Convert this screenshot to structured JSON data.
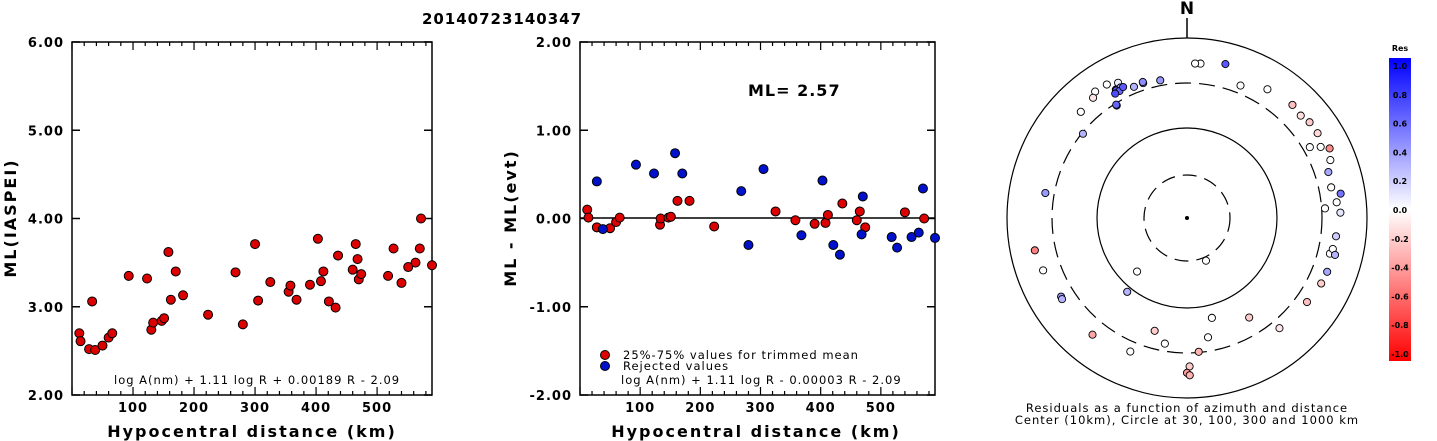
{
  "title": "20140723140347",
  "chart_data": [
    {
      "type": "scatter",
      "id": "ml_vs_distance",
      "xlabel": "Hypocentral distance (km)",
      "ylabel": "ML(IASPEI)",
      "xlim": [
        0,
        590
      ],
      "ylim": [
        2.0,
        6.0
      ],
      "xticks": [
        100,
        200,
        300,
        400,
        500
      ],
      "yticks": [
        "2.00",
        "3.00",
        "4.00",
        "5.00",
        "6.00"
      ],
      "formula": "log A(nm) + 1.11 log R + 0.00189 R - 2.09",
      "marker_color": "#dd0000",
      "points": [
        [
          12,
          2.7
        ],
        [
          14,
          2.61
        ],
        [
          28,
          2.52
        ],
        [
          33,
          3.06
        ],
        [
          38,
          2.51
        ],
        [
          50,
          2.56
        ],
        [
          60,
          2.65
        ],
        [
          66,
          2.7
        ],
        [
          93,
          3.35
        ],
        [
          123,
          3.32
        ],
        [
          130,
          2.74
        ],
        [
          133,
          2.82
        ],
        [
          147,
          2.84
        ],
        [
          151,
          2.87
        ],
        [
          158,
          3.62
        ],
        [
          162,
          3.08
        ],
        [
          170,
          3.4
        ],
        [
          182,
          3.13
        ],
        [
          223,
          2.91
        ],
        [
          268,
          3.39
        ],
        [
          280,
          2.8
        ],
        [
          300,
          3.71
        ],
        [
          305,
          3.07
        ],
        [
          325,
          3.28
        ],
        [
          355,
          3.17
        ],
        [
          358,
          3.24
        ],
        [
          368,
          3.08
        ],
        [
          390,
          3.25
        ],
        [
          403,
          3.77
        ],
        [
          408,
          3.29
        ],
        [
          412,
          3.4
        ],
        [
          421,
          3.06
        ],
        [
          432,
          2.99
        ],
        [
          436,
          3.58
        ],
        [
          460,
          3.42
        ],
        [
          465,
          3.71
        ],
        [
          468,
          3.54
        ],
        [
          470,
          3.31
        ],
        [
          474,
          3.37
        ],
        [
          518,
          3.35
        ],
        [
          527,
          3.66
        ],
        [
          540,
          3.27
        ],
        [
          551,
          3.45
        ],
        [
          563,
          3.5
        ],
        [
          570,
          3.66
        ],
        [
          572,
          4.0
        ],
        [
          590,
          3.47
        ]
      ]
    },
    {
      "type": "scatter",
      "id": "ml_residuals",
      "xlabel": "Hypocentral distance (km)",
      "ylabel": "ML - ML(evt)",
      "xlim": [
        0,
        590
      ],
      "ylim": [
        -2.0,
        2.0
      ],
      "xticks": [
        100,
        200,
        300,
        400,
        500
      ],
      "yticks": [
        "-2.00",
        "-1.00",
        "0.00",
        "1.00",
        "2.00"
      ],
      "annotation": "ML=  2.57",
      "formula": "log A(nm) + 1.11 log R - 0.00003 R - 2.09",
      "legend": [
        {
          "label": "25%-75% values for trimmed mean",
          "color": "#dd0000"
        },
        {
          "label": "Rejected values",
          "color": "#0011cc"
        }
      ],
      "trimmed": [
        [
          12,
          0.1
        ],
        [
          14,
          0.01
        ],
        [
          28,
          -0.1
        ],
        [
          50,
          -0.11
        ],
        [
          60,
          -0.04
        ],
        [
          66,
          0.01
        ],
        [
          133,
          -0.07
        ],
        [
          134,
          0.0
        ],
        [
          147,
          0.01
        ],
        [
          151,
          0.02
        ],
        [
          162,
          0.2
        ],
        [
          182,
          0.2
        ],
        [
          223,
          -0.09
        ],
        [
          325,
          0.08
        ],
        [
          358,
          -0.02
        ],
        [
          390,
          -0.06
        ],
        [
          408,
          -0.05
        ],
        [
          412,
          0.04
        ],
        [
          436,
          0.17
        ],
        [
          460,
          -0.02
        ],
        [
          465,
          0.08
        ],
        [
          474,
          -0.1
        ],
        [
          540,
          0.07
        ],
        [
          572,
          0.0
        ]
      ],
      "rejected": [
        [
          28,
          0.42
        ],
        [
          38,
          -0.12
        ],
        [
          93,
          0.61
        ],
        [
          123,
          0.51
        ],
        [
          158,
          0.74
        ],
        [
          170,
          0.51
        ],
        [
          268,
          0.31
        ],
        [
          280,
          -0.3
        ],
        [
          305,
          0.56
        ],
        [
          368,
          -0.19
        ],
        [
          403,
          0.43
        ],
        [
          421,
          -0.3
        ],
        [
          432,
          -0.41
        ],
        [
          468,
          -0.18
        ],
        [
          470,
          0.25
        ],
        [
          518,
          -0.21
        ],
        [
          551,
          -0.21
        ],
        [
          563,
          -0.16
        ],
        [
          570,
          0.34
        ],
        [
          590,
          -0.22
        ],
        [
          527,
          -0.33
        ]
      ]
    },
    {
      "type": "polar_scatter",
      "id": "residual_azimuth",
      "north_label": "N",
      "caption_line1": "Residuals as a function of azimuth and distance",
      "caption_line2": "Center (10km), Circle at 30, 100, 300 and 1000 km",
      "rings_km": [
        30,
        100,
        300,
        1000
      ],
      "colorbar": {
        "title": "Res",
        "ticks": [
          "1.0",
          "0.8",
          "0.6",
          "0.4",
          "0.2",
          "0.0",
          "-0.2",
          "-0.4",
          "-0.6",
          "-0.8",
          "-1.0"
        ]
      },
      "stations": [
        {
          "az": 14,
          "dist": 565,
          "res": 0.65
        },
        {
          "az": 5,
          "dist": 512,
          "res": 0.0
        },
        {
          "az": 3,
          "dist": 508,
          "res": 0.0
        },
        {
          "az": -27,
          "dist": 470,
          "res": 0.05
        },
        {
          "az": -36,
          "dist": 530,
          "res": 0.0
        },
        {
          "az": -31,
          "dist": 522,
          "res": 0.0
        },
        {
          "az": -29,
          "dist": 412,
          "res": 0.2
        },
        {
          "az": -27,
          "dist": 408,
          "res": 0.3
        },
        {
          "az": -29,
          "dist": 402,
          "res": 0.65
        },
        {
          "az": -18,
          "dist": 360,
          "res": 0.2
        },
        {
          "az": -11,
          "dist": 345,
          "res": 0.4
        },
        {
          "az": -32,
          "dist": 283,
          "res": 0.7
        },
        {
          "az": -51,
          "dist": 292,
          "res": 0.3
        },
        {
          "az": 22,
          "dist": 370,
          "res": 0.0
        },
        {
          "az": 32,
          "dist": 470,
          "res": 0.0
        },
        {
          "az": 43,
          "dist": 507,
          "res": -0.25
        },
        {
          "az": 48,
          "dist": 486,
          "res": -0.12
        },
        {
          "az": 52,
          "dist": 520,
          "res": -0.2
        },
        {
          "az": 57,
          "dist": 522,
          "res": -0.15
        },
        {
          "az": 64,
          "dist": 565,
          "res": -0.45
        },
        {
          "az": 62,
          "dist": 465,
          "res": 0.0
        },
        {
          "az": 72,
          "dist": 432,
          "res": 0.35
        },
        {
          "az": 68,
          "dist": 507,
          "res": 0.0
        },
        {
          "az": 78,
          "dist": 418,
          "res": 0.0
        },
        {
          "az": 81,
          "dist": 520,
          "res": 0.55
        },
        {
          "az": 84,
          "dist": 454,
          "res": 0.0
        },
        {
          "az": 88,
          "dist": 492,
          "res": 0.1
        },
        {
          "az": 86,
          "dist": 328,
          "res": 0.0
        },
        {
          "az": 97,
          "dist": 450,
          "res": 0.2
        },
        {
          "az": 104,
          "dist": 417,
          "res": 0.0
        },
        {
          "az": 102,
          "dist": 437,
          "res": 0.0
        },
        {
          "az": 104,
          "dist": 480,
          "res": 0.3
        },
        {
          "az": 111,
          "dist": 450,
          "res": 0.35
        },
        {
          "az": 116,
          "dist": 440,
          "res": -0.2
        },
        {
          "az": 125,
          "dist": 408,
          "res": -0.25
        },
        {
          "az": 140,
          "dist": 380,
          "res": -0.1
        },
        {
          "az": 175,
          "dist": 295,
          "res": -0.3
        },
        {
          "az": 179,
          "dist": 430,
          "res": -0.2
        },
        {
          "az": 180,
          "dist": 510,
          "res": -0.4
        },
        {
          "az": 179,
          "dist": 545,
          "res": -0.3
        },
        {
          "az": 190,
          "dist": 250,
          "res": 0.0
        },
        {
          "az": 196,
          "dist": 195,
          "res": -0.2
        },
        {
          "az": 203,
          "dist": 393,
          "res": 0.0
        },
        {
          "az": 219,
          "dist": 450,
          "res": -0.35
        },
        {
          "az": 238,
          "dist": 430,
          "res": 0.4
        },
        {
          "az": 237,
          "dist": 436,
          "res": 0.3
        },
        {
          "az": 250,
          "dist": 487,
          "res": 0.0
        },
        {
          "az": 258,
          "dist": 520,
          "res": -0.5
        },
        {
          "az": 219,
          "dist": 113,
          "res": 0.3
        },
        {
          "az": 223,
          "dist": 65,
          "res": 0.0
        },
        {
          "az": 156,
          "dist": 33,
          "res": 0.0
        },
        {
          "az": 166,
          "dist": 137,
          "res": 0.0
        },
        {
          "az": 148,
          "dist": 195,
          "res": -0.2
        },
        {
          "az": 170,
          "dist": 214,
          "res": 0.0
        },
        {
          "az": 60,
          "dist": 360,
          "res": 0.0
        },
        {
          "az": 280,
          "dist": 380,
          "res": 0.4
        },
        {
          "az": 328,
          "dist": 290,
          "res": 0.6
        },
        {
          "az": 332,
          "dist": 380,
          "res": 0.6
        },
        {
          "az": 334,
          "dist": 400,
          "res": 0.65
        },
        {
          "az": 330,
          "dist": 378,
          "res": 0.7
        },
        {
          "az": 338,
          "dist": 357,
          "res": 0.3
        },
        {
          "az": 342,
          "dist": 372,
          "res": 0.45
        },
        {
          "az": 315,
          "dist": 450,
          "res": 0.0
        },
        {
          "az": 322,
          "dist": 480,
          "res": -0.1
        }
      ]
    }
  ]
}
